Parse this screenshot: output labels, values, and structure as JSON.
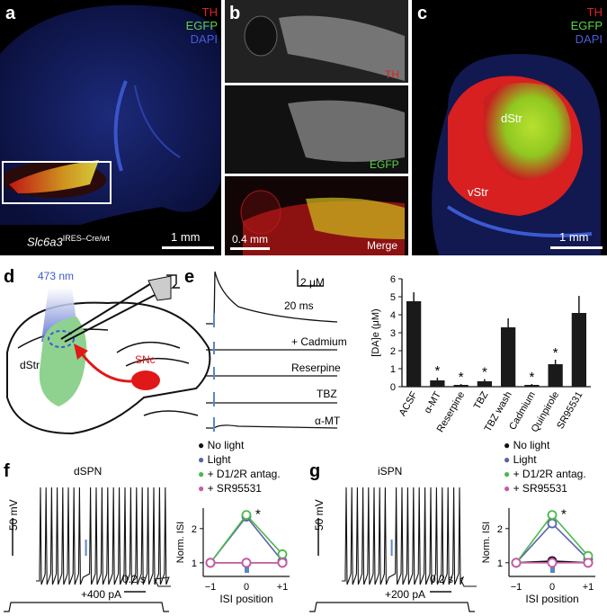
{
  "panels": {
    "a": {
      "letter": "a",
      "channels": [
        "TH",
        "EGFP",
        "DAPI"
      ],
      "genotype": "Slc6a3",
      "genotype_sup": "IRES–Cre/wt",
      "scale": "1 mm"
    },
    "b": {
      "letter": "b",
      "top_label": "TH",
      "mid_label": "EGFP",
      "bottom_label": "Merge",
      "scale": "0.4 mm"
    },
    "c": {
      "letter": "c",
      "channels": [
        "TH",
        "EGFP",
        "DAPI"
      ],
      "region_dorsal": "dStr",
      "region_ventral": "vStr",
      "scale": "1 mm"
    },
    "d": {
      "letter": "d",
      "wavelength": "473 nm",
      "region_str": "dStr",
      "region_snc": "SNc"
    },
    "e": {
      "letter": "e",
      "scale_y": "2 μM",
      "scale_x": "20 ms",
      "trace_labels": [
        "+ Cadmium",
        "Reserpine",
        "TBZ",
        "α-MT"
      ]
    },
    "f": {
      "letter": "f",
      "cell": "dSPN",
      "scale_y": "50 mV",
      "scale_x": "0.2 s",
      "current": "+400 pA"
    },
    "g": {
      "letter": "g",
      "cell": "iSPN",
      "scale_y": "50 mV",
      "scale_x": "0.2 s",
      "current": "+200 pA"
    }
  },
  "legend": {
    "items": [
      {
        "label": "No light",
        "color": "#111111"
      },
      {
        "label": "Light",
        "color": "#5a62a8"
      },
      {
        "label": "+ D1/2R antag.",
        "color": "#4bb84b"
      },
      {
        "label": "+ SR95531",
        "color": "#c85aa8"
      }
    ]
  },
  "chart_data": [
    {
      "type": "bar",
      "ylabel": "[DA]e (μM)",
      "categories": [
        "ACSF",
        "α-MT",
        "Reserpine",
        "TBZ",
        "TBZ wash",
        "Cadmium",
        "Quinpirole",
        "SR95531"
      ],
      "values": [
        4.75,
        0.35,
        0.1,
        0.3,
        3.3,
        0.1,
        1.25,
        4.1
      ],
      "errors": [
        0.5,
        0.15,
        0.05,
        0.12,
        0.5,
        0.05,
        0.25,
        0.95
      ],
      "significance": [
        "",
        "*",
        "*",
        "*",
        "",
        "*",
        "*",
        ""
      ],
      "ylim": [
        0,
        6
      ],
      "yticks": [
        0,
        1,
        2,
        3,
        4,
        5,
        6
      ]
    },
    {
      "type": "line",
      "xlabel": "ISI position",
      "ylabel": "Norm. ISI",
      "x": [
        -1,
        0,
        1
      ],
      "xticklabels": [
        "−1",
        "0",
        "+1"
      ],
      "ylim": [
        0.6,
        2.6
      ],
      "yticks": [
        1,
        2
      ],
      "series": [
        {
          "name": "No light",
          "values": [
            1.0,
            1.0,
            1.0
          ]
        },
        {
          "name": "Light",
          "values": [
            1.0,
            2.35,
            1.05
          ]
        },
        {
          "name": "+ D1/2R antag.",
          "values": [
            1.0,
            2.4,
            1.25
          ]
        },
        {
          "name": "+ SR95531",
          "values": [
            1.0,
            1.0,
            1.0
          ]
        }
      ],
      "annotation": "*"
    },
    {
      "type": "line",
      "xlabel": "ISI position",
      "ylabel": "Norm. ISI",
      "x": [
        -1,
        0,
        1
      ],
      "xticklabels": [
        "−1",
        "0",
        "+1"
      ],
      "ylim": [
        0.6,
        2.6
      ],
      "yticks": [
        1,
        2
      ],
      "series": [
        {
          "name": "No light",
          "values": [
            1.0,
            1.05,
            1.0
          ]
        },
        {
          "name": "Light",
          "values": [
            1.0,
            2.15,
            1.1
          ]
        },
        {
          "name": "+ D1/2R antag.",
          "values": [
            1.0,
            2.4,
            1.2
          ]
        },
        {
          "name": "+ SR95531",
          "values": [
            1.0,
            1.0,
            1.0
          ]
        }
      ],
      "annotation": "*"
    }
  ]
}
